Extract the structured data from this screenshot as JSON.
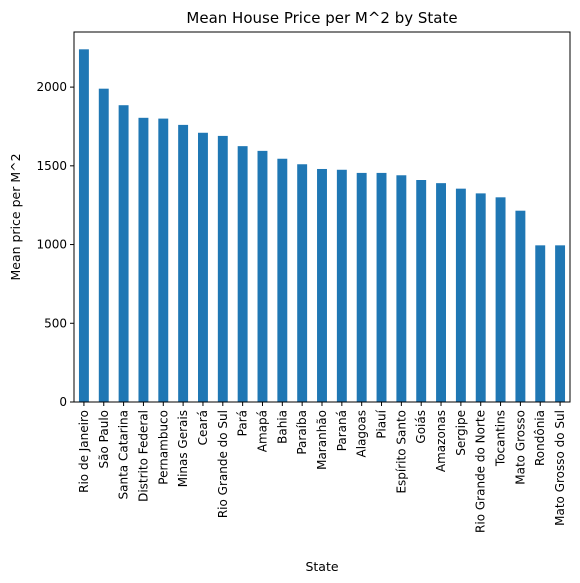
{
  "chart_data": {
    "type": "bar",
    "title": "Mean House Price per M^2 by State",
    "xlabel": "State",
    "ylabel": "Mean price per M^2",
    "ylim": [
      0,
      2350
    ],
    "yticks": [
      0,
      500,
      1000,
      1500,
      2000
    ],
    "grid": false,
    "color": "#1f77b4",
    "categories": [
      "Rio de Janeiro",
      "São Paulo",
      "Santa Catarina",
      "Distrito Federal",
      "Pernambuco",
      "Minas Gerais",
      "Ceará",
      "Rio Grande do Sul",
      "Pará",
      "Amapá",
      "Bahia",
      "Paraíba",
      "Maranhão",
      "Paraná",
      "Alagoas",
      "Piauí",
      "Espírito Santo",
      "Goiás",
      "Amazonas",
      "Sergipe",
      "Rio Grande do Norte",
      "Tocantins",
      "Mato Grosso",
      "Rondônia",
      "Mato Grosso do Sul"
    ],
    "values": [
      2240,
      1990,
      1885,
      1805,
      1800,
      1760,
      1710,
      1690,
      1625,
      1595,
      1545,
      1510,
      1480,
      1475,
      1455,
      1455,
      1440,
      1410,
      1390,
      1355,
      1325,
      1300,
      1215,
      995,
      995
    ]
  }
}
